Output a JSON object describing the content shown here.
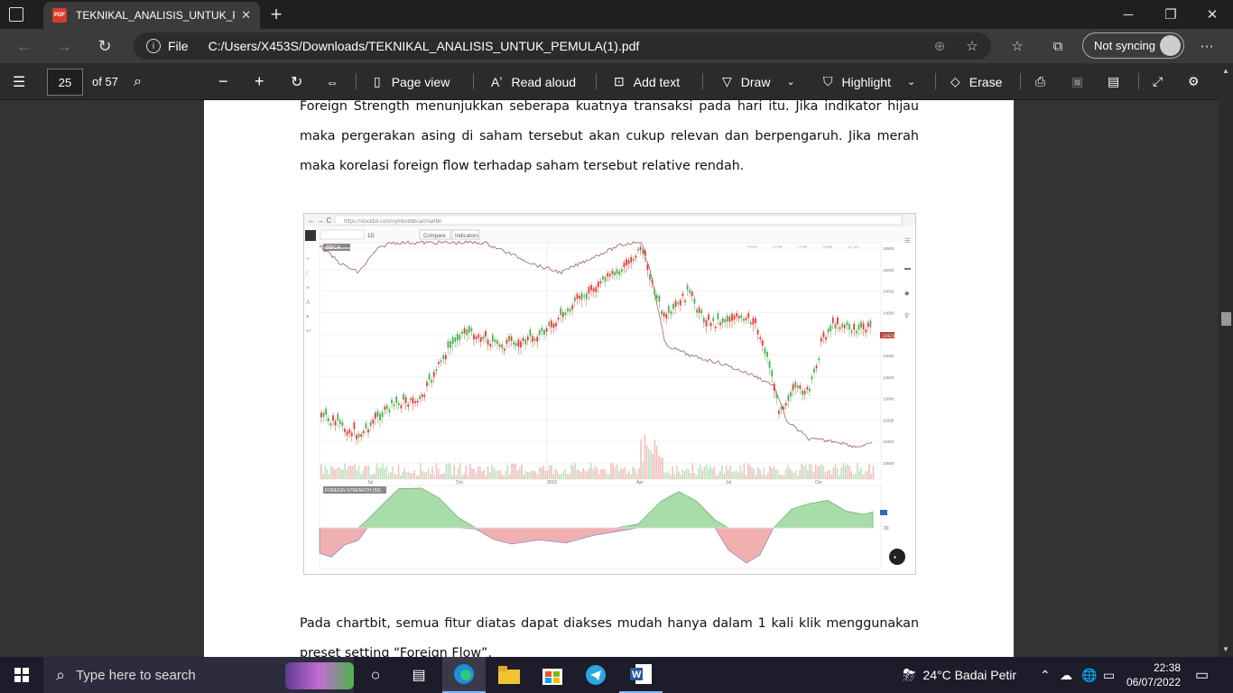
{
  "browser": {
    "tab_title": "TEKNIKAL_ANALISIS_UNTUK_PEMULA(1).pdf",
    "tab_short": "TEKNIKAL_ANALISIS_UNTUK_PEM",
    "pdf_badge": "PDF",
    "url_scheme": "File",
    "url_path": "C:/Users/X453S/Downloads/TEKNIKAL_ANALISIS_UNTUK_PEMULA(1).pdf",
    "profile_label": "Not syncing"
  },
  "pdf_toolbar": {
    "page_current": "25",
    "page_total": "of 57",
    "page_view": "Page view",
    "read_aloud": "Read aloud",
    "add_text": "Add text",
    "draw": "Draw",
    "highlight": "Highlight",
    "erase": "Erase"
  },
  "document": {
    "paragraph_top": "Foreign Strength menunjukkan seberapa kuatnya transaksi pada hari itu. Jika indikator hijau maka pergerakan asing di saham tersebut akan cukup relevan dan berpengaruh. Jika merah maka korelasi foreign flow terhadap saham tersebut relative rendah.",
    "paragraph_bottom": "Pada chartbit, semua fitur diatas dapat diakses mudah hanya dalam 1 kali klik menggunakan preset setting “Foreign Flow”.",
    "embedded_screenshot": {
      "url": "https://stockbit.com/symbol/bbca/chartbit",
      "interval": "1D",
      "compare": "Compare",
      "indicators": "Indicators",
      "symbol": "BBCA",
      "legend": [
        "1566ft",
        "1315ft",
        "1790ft",
        "1566ft",
        "1d: Aor"
      ],
      "last_price_tag": "13429",
      "x_ticks": [
        "Jul",
        "Oct",
        "2015",
        "Apr",
        "Jul",
        "Oct"
      ],
      "y_ticks": [
        "15500",
        "15000",
        "14500",
        "14000",
        "13500",
        "13000",
        "12500",
        "12000",
        "11500",
        "11000",
        "10500"
      ],
      "indicator_label": "FOREIGN STRENGTH (50)",
      "indicator_ref": "20"
    }
  },
  "taskbar": {
    "search_placeholder": "Type here to search",
    "weather": "24°C  Badai Petir",
    "time": "22:38",
    "date": "06/07/2022"
  },
  "colors": {
    "accent_green": "#4caf50",
    "accent_red": "#e53935",
    "fs_green": "#a8dca8",
    "fs_red": "#f0b0b0"
  }
}
